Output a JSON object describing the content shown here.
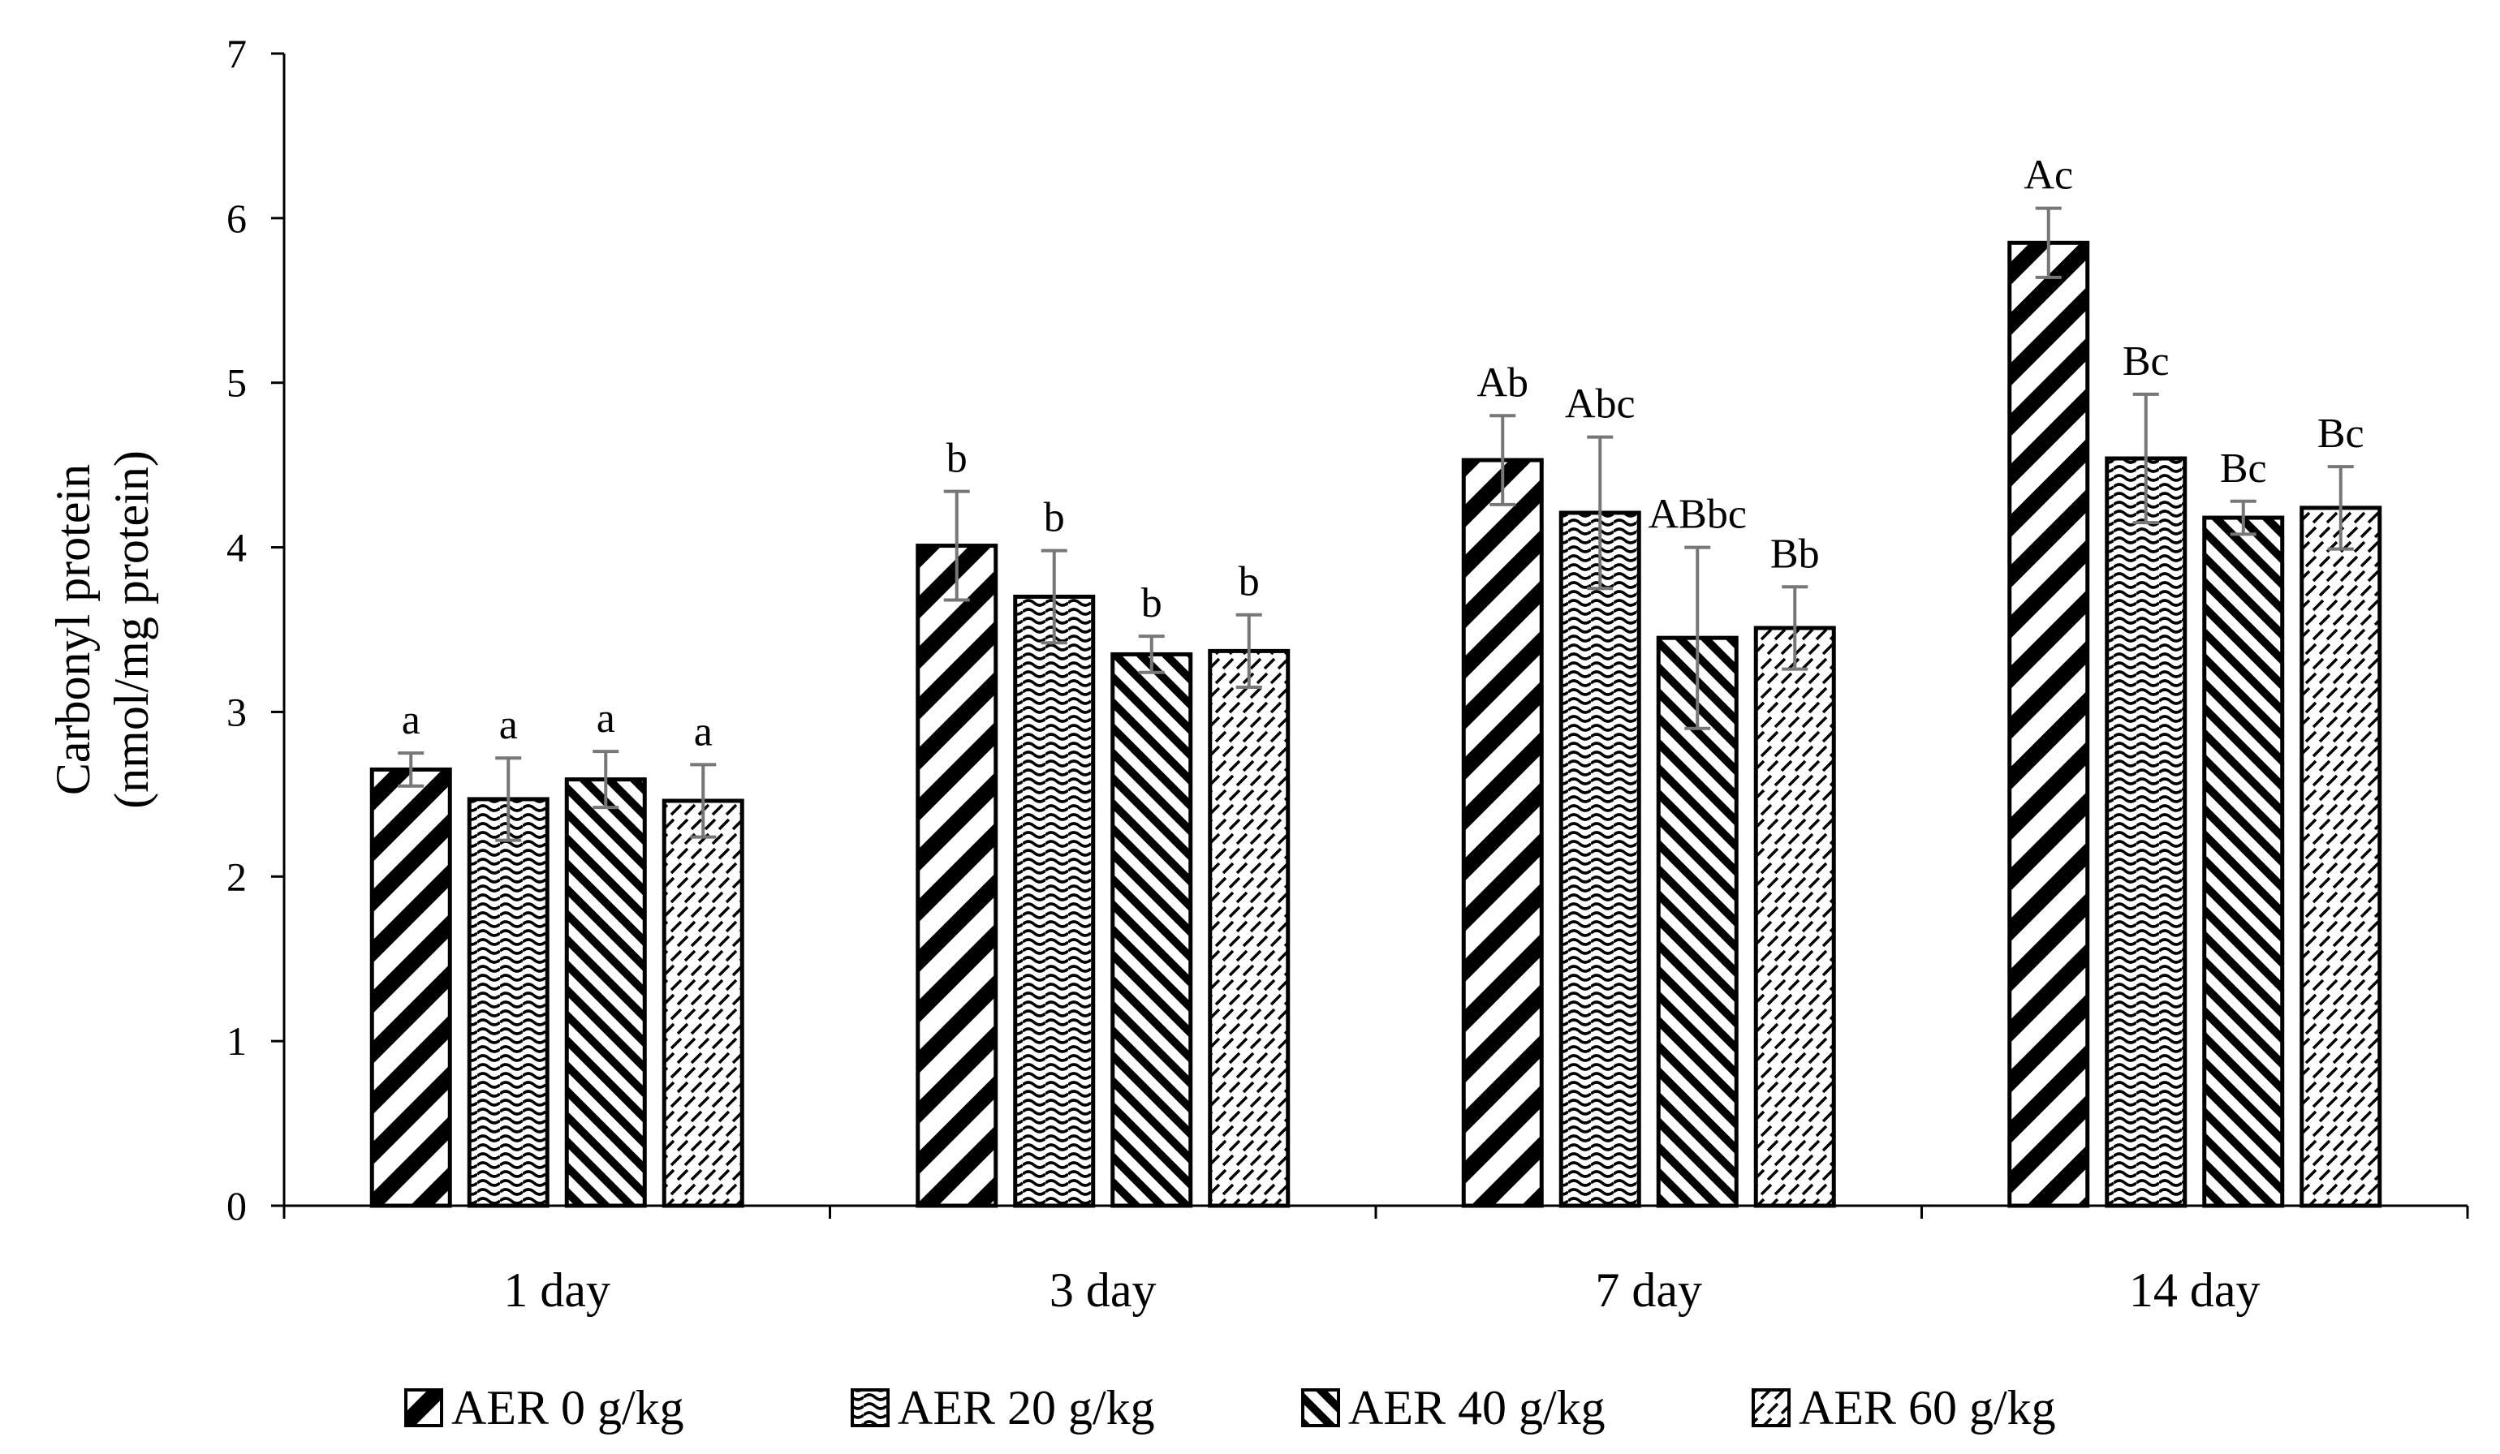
{
  "chart_data": {
    "type": "bar",
    "title": "",
    "xlabel": "",
    "ylabel_lines": [
      "Carbonyl protein",
      "(nmol/mg protein)"
    ],
    "ylim": [
      0,
      7
    ],
    "yticks": [
      0,
      1,
      2,
      3,
      4,
      5,
      6,
      7
    ],
    "grid": false,
    "legend_position": "bottom",
    "categories": [
      "1 day",
      "3 day",
      "7 day",
      "14 day"
    ],
    "series": [
      {
        "name": "AER 0 g/kg",
        "pattern": "wide-diagonal",
        "values": [
          2.65,
          4.01,
          4.53,
          5.85
        ],
        "errors": [
          0.1,
          0.33,
          0.27,
          0.21
        ],
        "labels": [
          "a",
          "b",
          "Ab",
          "Ac"
        ]
      },
      {
        "name": "AER 20 g/kg",
        "pattern": "wave",
        "values": [
          2.47,
          3.7,
          4.21,
          4.54
        ],
        "errors": [
          0.25,
          0.28,
          0.46,
          0.39
        ],
        "labels": [
          "a",
          "b",
          "Abc",
          "Bc"
        ]
      },
      {
        "name": "AER 40 g/kg",
        "pattern": "dense-diagonal",
        "values": [
          2.59,
          3.35,
          3.45,
          4.18
        ],
        "errors": [
          0.17,
          0.11,
          0.55,
          0.1
        ],
        "labels": [
          "a",
          "b",
          "ABbc",
          "Bc"
        ]
      },
      {
        "name": "AER 60 g/kg",
        "pattern": "dash",
        "values": [
          2.46,
          3.37,
          3.51,
          4.24
        ],
        "errors": [
          0.22,
          0.22,
          0.25,
          0.25
        ],
        "labels": [
          "a",
          "b",
          "Bb",
          "Bc"
        ]
      }
    ]
  }
}
